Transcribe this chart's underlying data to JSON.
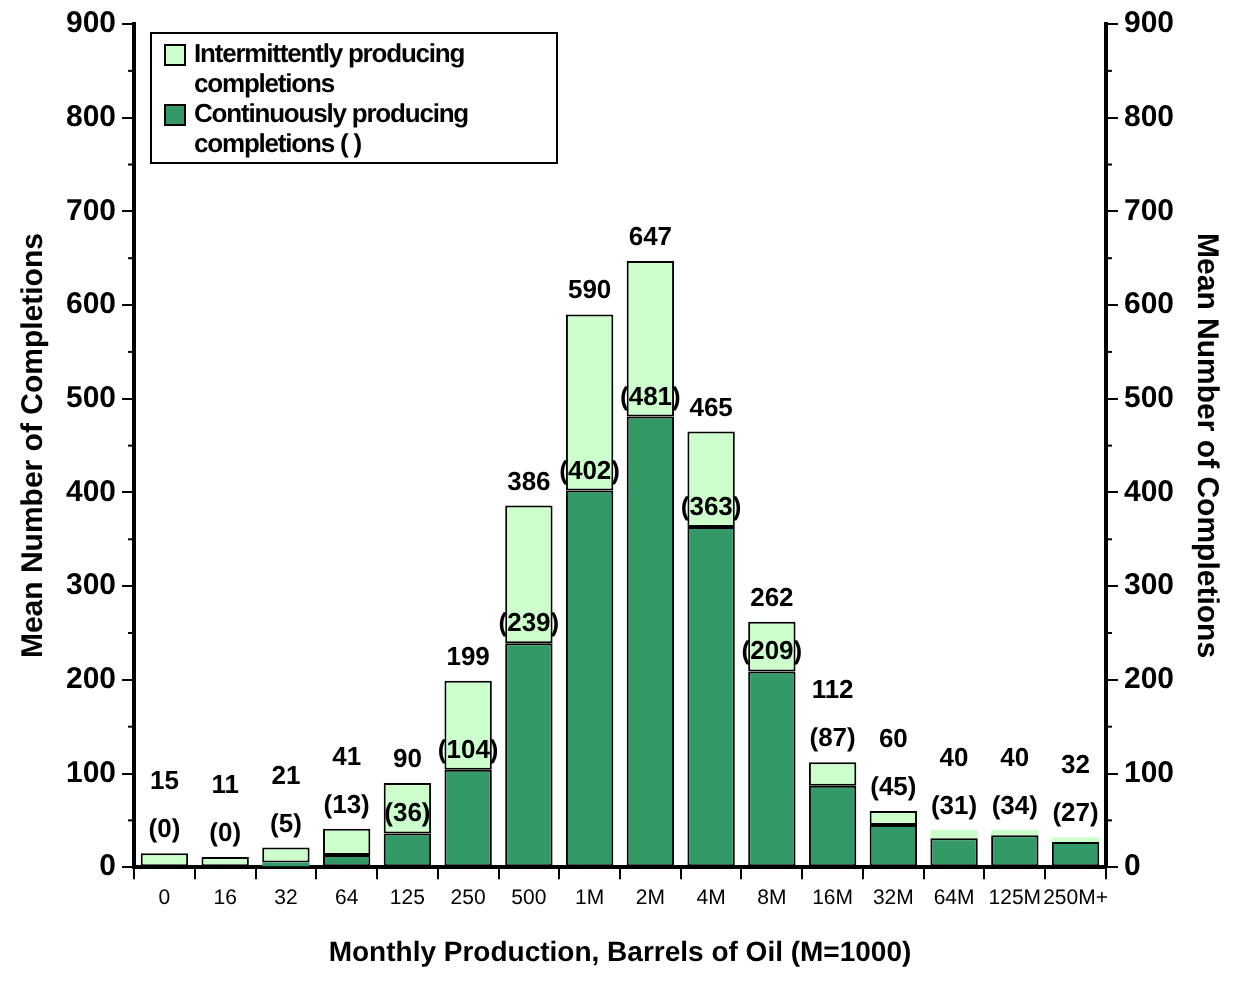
{
  "chart_data": {
    "type": "bar",
    "stacked": true,
    "xlabel": "Monthly Production, Barrels of Oil (M=1000)",
    "ylabel": "Mean Number of Completions",
    "y2label": "Mean Number of Completions",
    "categories": [
      "0",
      "16",
      "32",
      "64",
      "125",
      "250",
      "500",
      "1M",
      "2M",
      "4M",
      "8M",
      "16M",
      "32M",
      "64M",
      "125M",
      "250M+"
    ],
    "series": [
      {
        "name": "Continuously producing completions ( )",
        "color": "#339966",
        "values": [
          0,
          0,
          5,
          13,
          36,
          104,
          239,
          402,
          481,
          363,
          209,
          87,
          45,
          31,
          34,
          27
        ],
        "value_labels": [
          "(0)",
          "(0)",
          "(5)",
          "(13)",
          "(36)",
          "(104)",
          "(239)",
          "(402)",
          "(481)",
          "(363)",
          "(209)",
          "(87)",
          "(45)",
          "(31)",
          "(34)",
          "(27)"
        ]
      },
      {
        "name": "Intermittently producing completions",
        "color": "#ccffcc",
        "values": [
          15,
          11,
          16,
          28,
          54,
          95,
          147,
          188,
          166,
          102,
          53,
          25,
          15,
          9,
          6,
          5
        ]
      }
    ],
    "totals": [
      "15",
      "11",
      "21",
      "41",
      "90",
      "199",
      "386",
      "590",
      "647",
      "465",
      "262",
      "112",
      "60",
      "40",
      "40",
      "32"
    ],
    "ylim": [
      0,
      900
    ],
    "yticks": [
      0,
      100,
      200,
      300,
      400,
      500,
      600,
      700,
      800,
      900
    ],
    "y2lim": [
      0,
      900
    ],
    "y2ticks": [
      0,
      100,
      200,
      300,
      400,
      500,
      600,
      700,
      800,
      900
    ],
    "grid": false,
    "legend": "top left"
  }
}
